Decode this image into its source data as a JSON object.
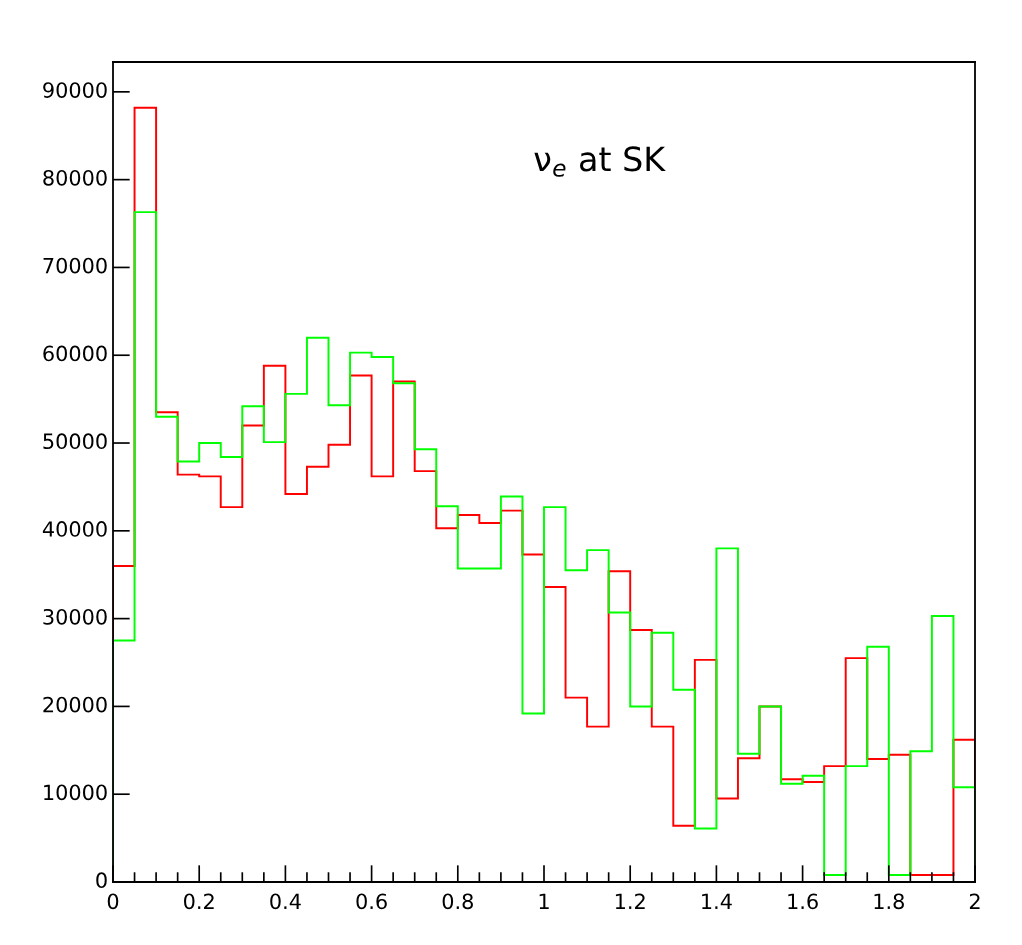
{
  "chart_data": {
    "type": "histogram",
    "bins": [
      0,
      0.05,
      0.1,
      0.15,
      0.2,
      0.25,
      0.3,
      0.35,
      0.4,
      0.45,
      0.5,
      0.55,
      0.6,
      0.65,
      0.7,
      0.75,
      0.8,
      0.85,
      0.9,
      0.95,
      1,
      1.05,
      1.1,
      1.15,
      1.2,
      1.25,
      1.3,
      1.35,
      1.4,
      1.45,
      1.5,
      1.55,
      1.6,
      1.65,
      1.7,
      1.75,
      1.8,
      1.85,
      1.9,
      1.95,
      2
    ],
    "series": [
      {
        "color": "#ff0000",
        "values": [
          36000,
          88200,
          53500,
          46400,
          46200,
          42700,
          52000,
          58800,
          44200,
          47300,
          49800,
          57700,
          46200,
          57000,
          46800,
          40300,
          41800,
          40900,
          42300,
          37300,
          33600,
          21000,
          17700,
          35400,
          28700,
          17700,
          6400,
          25300,
          9500,
          14100,
          20000,
          11700,
          11400,
          13200,
          25500,
          14000,
          14500,
          800,
          800,
          16200
        ]
      },
      {
        "color": "#00ff00",
        "values": [
          27500,
          76300,
          53000,
          47900,
          50000,
          48400,
          54200,
          50100,
          55600,
          62000,
          54300,
          60300,
          59800,
          56800,
          49300,
          42800,
          35700,
          35700,
          43900,
          19200,
          42700,
          35500,
          37800,
          30700,
          20000,
          28400,
          21900,
          6100,
          38000,
          14600,
          20000,
          11200,
          12100,
          800,
          13200,
          26800,
          800,
          14900,
          30300,
          10800
        ]
      }
    ],
    "xlim": [
      0,
      2
    ],
    "xticks": [
      0,
      {
        "value": 0.05,
        "label": null
      },
      {
        "value": 0.1,
        "label": null
      },
      {
        "value": 0.15,
        "label": null
      },
      0.2,
      {
        "value": 0.25,
        "label": null
      },
      {
        "value": 0.3,
        "label": null
      },
      {
        "value": 0.35,
        "label": null
      },
      0.4,
      {
        "value": 0.45,
        "label": null
      },
      {
        "value": 0.5,
        "label": null
      },
      {
        "value": 0.55,
        "label": null
      },
      0.6,
      {
        "value": 0.65,
        "label": null
      },
      {
        "value": 0.7,
        "label": null
      },
      {
        "value": 0.75,
        "label": null
      },
      0.8,
      {
        "value": 0.85,
        "label": null
      },
      {
        "value": 0.9,
        "label": null
      },
      {
        "value": 0.95,
        "label": null
      },
      1,
      {
        "value": 1.05,
        "label": null
      },
      {
        "value": 1.1,
        "label": null
      },
      {
        "value": 1.15,
        "label": null
      },
      1.2,
      {
        "value": 1.25,
        "label": null
      },
      {
        "value": 1.3,
        "label": null
      },
      {
        "value": 1.35,
        "label": null
      },
      1.4,
      {
        "value": 1.45,
        "label": null
      },
      {
        "value": 1.5,
        "label": null
      },
      {
        "value": 1.55,
        "label": null
      },
      1.6,
      {
        "value": 1.65,
        "label": null
      },
      {
        "value": 1.7,
        "label": null
      },
      {
        "value": 1.75,
        "label": null
      },
      1.8,
      {
        "value": 1.85,
        "label": null
      },
      {
        "value": 1.9,
        "label": null
      },
      {
        "value": 1.95,
        "label": null
      },
      2
    ],
    "ylim": [
      0,
      93400
    ],
    "yticks": [
      0,
      10000,
      20000,
      30000,
      40000,
      50000,
      60000,
      70000,
      80000,
      90000
    ],
    "annotations": [
      "ν$_{e}$ at SK"
    ],
    "grid": false,
    "legend": false
  }
}
